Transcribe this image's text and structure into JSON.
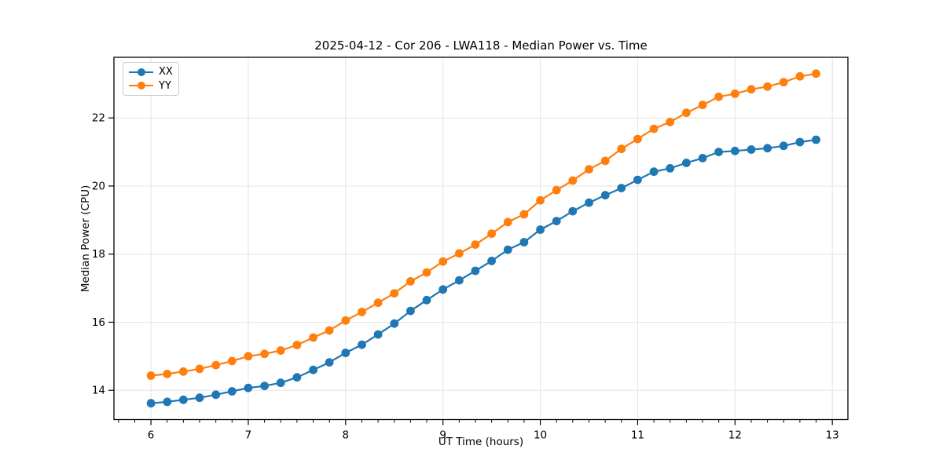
{
  "chart_data": {
    "type": "line",
    "title": "2025-04-12 - Cor 206 - LWA118 - Median Power vs. Time",
    "xlabel": "UT Time (hours)",
    "ylabel": "Median Power (CPU)",
    "xlim": [
      5.62,
      13.16
    ],
    "ylim": [
      13.14,
      23.78
    ],
    "xticks": [
      6,
      7,
      8,
      9,
      10,
      11,
      12,
      13
    ],
    "yticks": [
      14,
      16,
      18,
      20,
      22
    ],
    "x_minor_step_hours": 0.16667,
    "grid": "major-only-light-gray",
    "grid_color": "#e4e4e4",
    "legend_position": "upper-left",
    "x": [
      6.0,
      6.167,
      6.333,
      6.5,
      6.667,
      6.833,
      7.0,
      7.167,
      7.333,
      7.5,
      7.667,
      7.833,
      8.0,
      8.167,
      8.333,
      8.5,
      8.667,
      8.833,
      9.0,
      9.167,
      9.333,
      9.5,
      9.667,
      9.833,
      10.0,
      10.167,
      10.333,
      10.5,
      10.667,
      10.833,
      11.0,
      11.167,
      11.333,
      11.5,
      11.667,
      11.833,
      12.0,
      12.167,
      12.333,
      12.5,
      12.667,
      12.833
    ],
    "series": [
      {
        "name": "XX",
        "color": "#1f77b4",
        "values": [
          13.62,
          13.66,
          13.72,
          13.78,
          13.87,
          13.97,
          14.07,
          14.13,
          14.22,
          14.38,
          14.6,
          14.82,
          15.1,
          15.34,
          15.64,
          15.96,
          16.33,
          16.65,
          16.96,
          17.23,
          17.51,
          17.8,
          18.13,
          18.35,
          18.72,
          18.97,
          19.26,
          19.51,
          19.73,
          19.94,
          20.18,
          20.42,
          20.52,
          20.68,
          20.82,
          21.0,
          21.03,
          21.07,
          21.11,
          21.18,
          21.29,
          21.36
        ]
      },
      {
        "name": "YY",
        "color": "#ff7f0e",
        "values": [
          14.43,
          14.48,
          14.55,
          14.63,
          14.74,
          14.86,
          15.0,
          15.07,
          15.17,
          15.33,
          15.55,
          15.76,
          16.05,
          16.3,
          16.57,
          16.85,
          17.2,
          17.46,
          17.78,
          18.02,
          18.28,
          18.6,
          18.94,
          19.17,
          19.58,
          19.88,
          20.16,
          20.49,
          20.74,
          21.09,
          21.38,
          21.68,
          21.88,
          22.15,
          22.38,
          22.62,
          22.71,
          22.84,
          22.92,
          23.05,
          23.22,
          23.3
        ]
      }
    ]
  }
}
